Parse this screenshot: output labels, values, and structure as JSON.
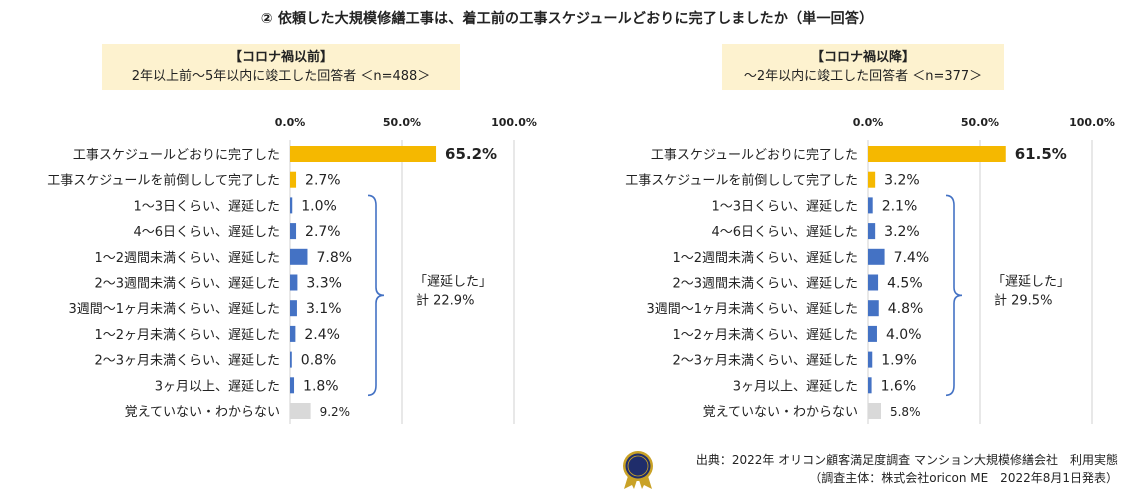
{
  "title": "② 依頼した大規模修繕工事は、着工前の工事スケジュールどおりに完了しましたか（単一回答）",
  "colors": {
    "highlight": "#f5b800",
    "bar": "#4472c4",
    "gray": "#d9d9d9",
    "brace": "#4472c4",
    "header_bg": "#fdf2cf"
  },
  "panels": [
    {
      "header_line1": "【コロナ禍以前】",
      "header_line2": "2年以上前～5年以内に竣工した回答者 ＜n=488＞",
      "brace_label_1": "「遅延した」",
      "brace_label_2": "計 22.9%"
    },
    {
      "header_line1": "【コロナ禍以降】",
      "header_line2": "～2年以内に竣工した回答者 ＜n=377＞",
      "brace_label_1": "「遅延した」",
      "brace_label_2": "計 29.5%"
    }
  ],
  "chart_data": [
    {
      "type": "bar",
      "orientation": "horizontal",
      "axis_ticks": [
        "0.0%",
        "50.0%",
        "100.0%"
      ],
      "xlim": [
        0,
        100
      ],
      "categories": [
        "工事スケジュールどおりに完了した",
        "工事スケジュールを前倒しして完了した",
        "1～3日くらい、遅延した",
        "4～6日くらい、遅延した",
        "1～2週間未満くらい、遅延した",
        "2～3週間未満くらい、遅延した",
        "3週間～1ヶ月未満くらい、遅延した",
        "1～2ヶ月未満くらい、遅延した",
        "2～3ヶ月未満くらい、遅延した",
        "3ヶ月以上、遅延した",
        "覚えていない・わからない"
      ],
      "values": [
        65.2,
        2.7,
        1.0,
        2.7,
        7.8,
        3.3,
        3.1,
        2.4,
        0.8,
        1.8,
        9.2
      ],
      "labels": [
        "65.2%",
        "2.7%",
        "1.0%",
        "2.7%",
        "7.8%",
        "3.3%",
        "3.1%",
        "2.4%",
        "0.8%",
        "1.8%",
        "9.2%"
      ],
      "bar_colors": [
        "highlight",
        "highlight",
        "bar",
        "bar",
        "bar",
        "bar",
        "bar",
        "bar",
        "bar",
        "bar",
        "gray"
      ]
    },
    {
      "type": "bar",
      "orientation": "horizontal",
      "axis_ticks": [
        "0.0%",
        "50.0%",
        "100.0%"
      ],
      "xlim": [
        0,
        100
      ],
      "categories": [
        "工事スケジュールどおりに完了した",
        "工事スケジュールを前倒しして完了した",
        "1～3日くらい、遅延した",
        "4～6日くらい、遅延した",
        "1～2週間未満くらい、遅延した",
        "2～3週間未満くらい、遅延した",
        "3週間～1ヶ月未満くらい、遅延した",
        "1～2ヶ月未満くらい、遅延した",
        "2～3ヶ月未満くらい、遅延した",
        "3ヶ月以上、遅延した",
        "覚えていない・わからない"
      ],
      "values": [
        61.5,
        3.2,
        2.1,
        3.2,
        7.4,
        4.5,
        4.8,
        4.0,
        1.9,
        1.6,
        5.8
      ],
      "labels": [
        "61.5%",
        "3.2%",
        "2.1%",
        "3.2%",
        "7.4%",
        "4.5%",
        "4.8%",
        "4.0%",
        "1.9%",
        "1.6%",
        "5.8%"
      ],
      "bar_colors": [
        "highlight",
        "highlight",
        "bar",
        "bar",
        "bar",
        "bar",
        "bar",
        "bar",
        "bar",
        "bar",
        "gray"
      ]
    }
  ],
  "footer": {
    "line1": "出典：2022年 オリコン顧客満足度調査 マンション大規模修繕会社　利用実態",
    "line2": "（調査主体：株式会社oricon ME　2022年8月1日発表）"
  },
  "logo_icon": "oricon-award-seal-icon"
}
